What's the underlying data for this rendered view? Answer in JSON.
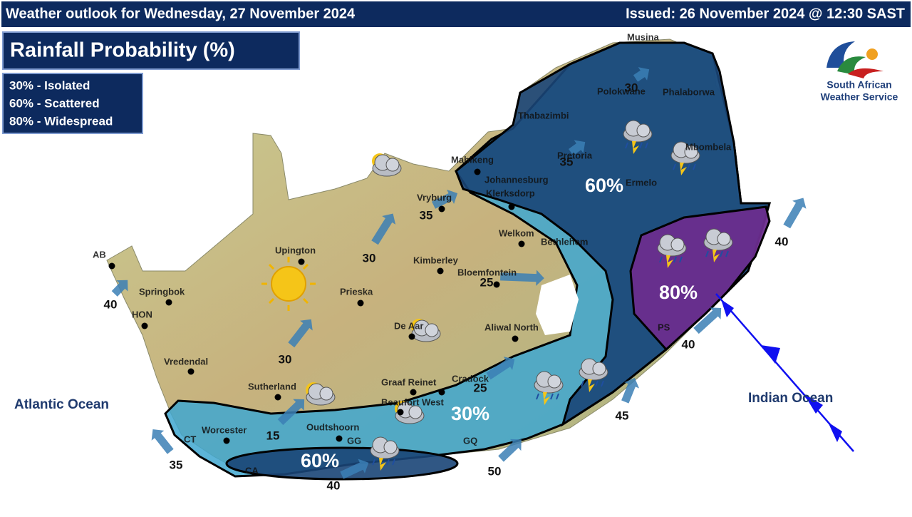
{
  "header": {
    "title": "Weather outlook for Wednesday, 27 November 2024",
    "issued": "Issued: 26 November 2024  @ 12:30 SAST"
  },
  "map_title": "Rainfall Probability (%)",
  "legend": [
    "30% - Isolated",
    "60% - Scattered",
    "80% - Widespread"
  ],
  "logo": [
    "South African",
    "Weather Service"
  ],
  "oceans": [
    "Atlantic Ocean",
    "Indian Ocean"
  ],
  "zones": [
    "60%",
    "80%",
    "30%",
    "60%"
  ],
  "cities": [
    "AB",
    "Springbok",
    "HON",
    "Vredendal",
    "Upington",
    "Prieska",
    "Kimberley",
    "Bloemfontein",
    "Vryburg",
    "Mahikeng",
    "Johannesburg",
    "Klerksdorp",
    "Welkom",
    "Bethlehem",
    "Pretoria",
    "Thabazimbi",
    "Musina",
    "Polokwane",
    "Phalaborwa",
    "Mbombela",
    "Ermelo",
    "De Aar",
    "Aliwal North",
    "Graaf Reinet",
    "Cradock",
    "Sutherland",
    "Beaufort West",
    "Worcester",
    "CT",
    "Oudtshoorn",
    "GG",
    "GQ",
    "CA",
    "PS"
  ],
  "wind_speeds": [
    40,
    35,
    40,
    50,
    45,
    40,
    40,
    30,
    30,
    35,
    25,
    25,
    15,
    35,
    30
  ]
}
